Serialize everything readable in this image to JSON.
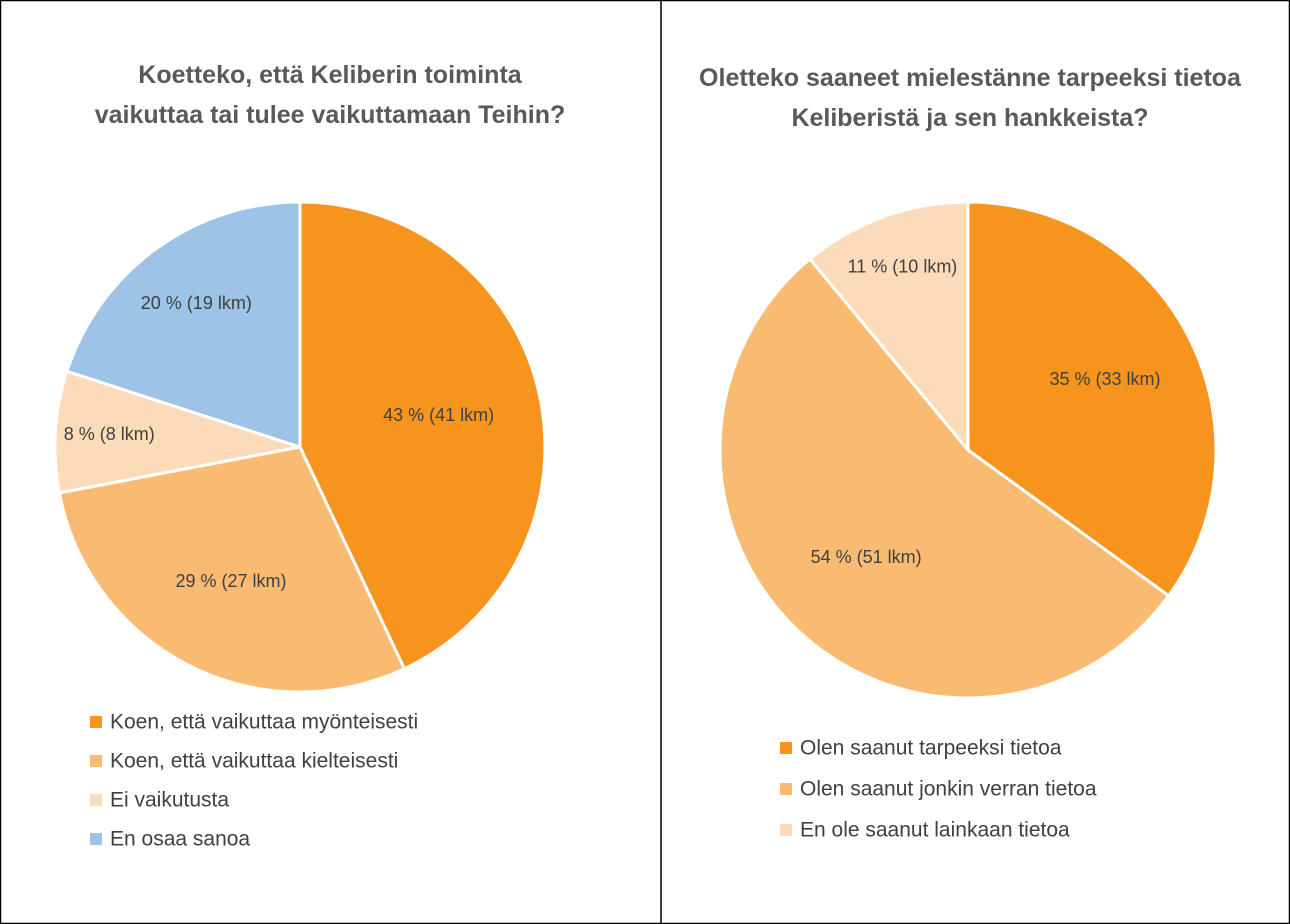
{
  "chart_data": [
    {
      "type": "pie",
      "title": "Koetteko, että Keliberin toiminta vaikuttaa tai tulee vaikuttamaan Teihin?",
      "categories": [
        "Koen, että vaikuttaa myönteisesti",
        "Koen, että vaikuttaa kielteisesti",
        "Ei vaikutusta",
        "En osaa sanoa"
      ],
      "values": [
        43,
        29,
        8,
        20
      ],
      "value_labels": [
        "43 % (41 lkm)",
        "29 % (27 lkm)",
        "8 % (8 lkm)",
        "20 % (19 lkm)"
      ],
      "colors": [
        "#f7941d",
        "#f9bb72",
        "#fcdcb8",
        "#9dc3e6"
      ]
    },
    {
      "type": "pie",
      "title": "Oletteko saaneet mielestänne tarpeeksi tietoa Keliberistä ja sen hankkeista?",
      "categories": [
        "Olen saanut tarpeeksi tietoa",
        "Olen saanut jonkin verran tietoa",
        "En ole saanut lainkaan tietoa"
      ],
      "values": [
        35,
        54,
        11
      ],
      "value_labels": [
        "35 % (33 lkm)",
        "54 % (51 lkm)",
        "11 % (10 lkm)"
      ],
      "colors": [
        "#f7941d",
        "#f9bb72",
        "#fcdcb8"
      ]
    }
  ]
}
